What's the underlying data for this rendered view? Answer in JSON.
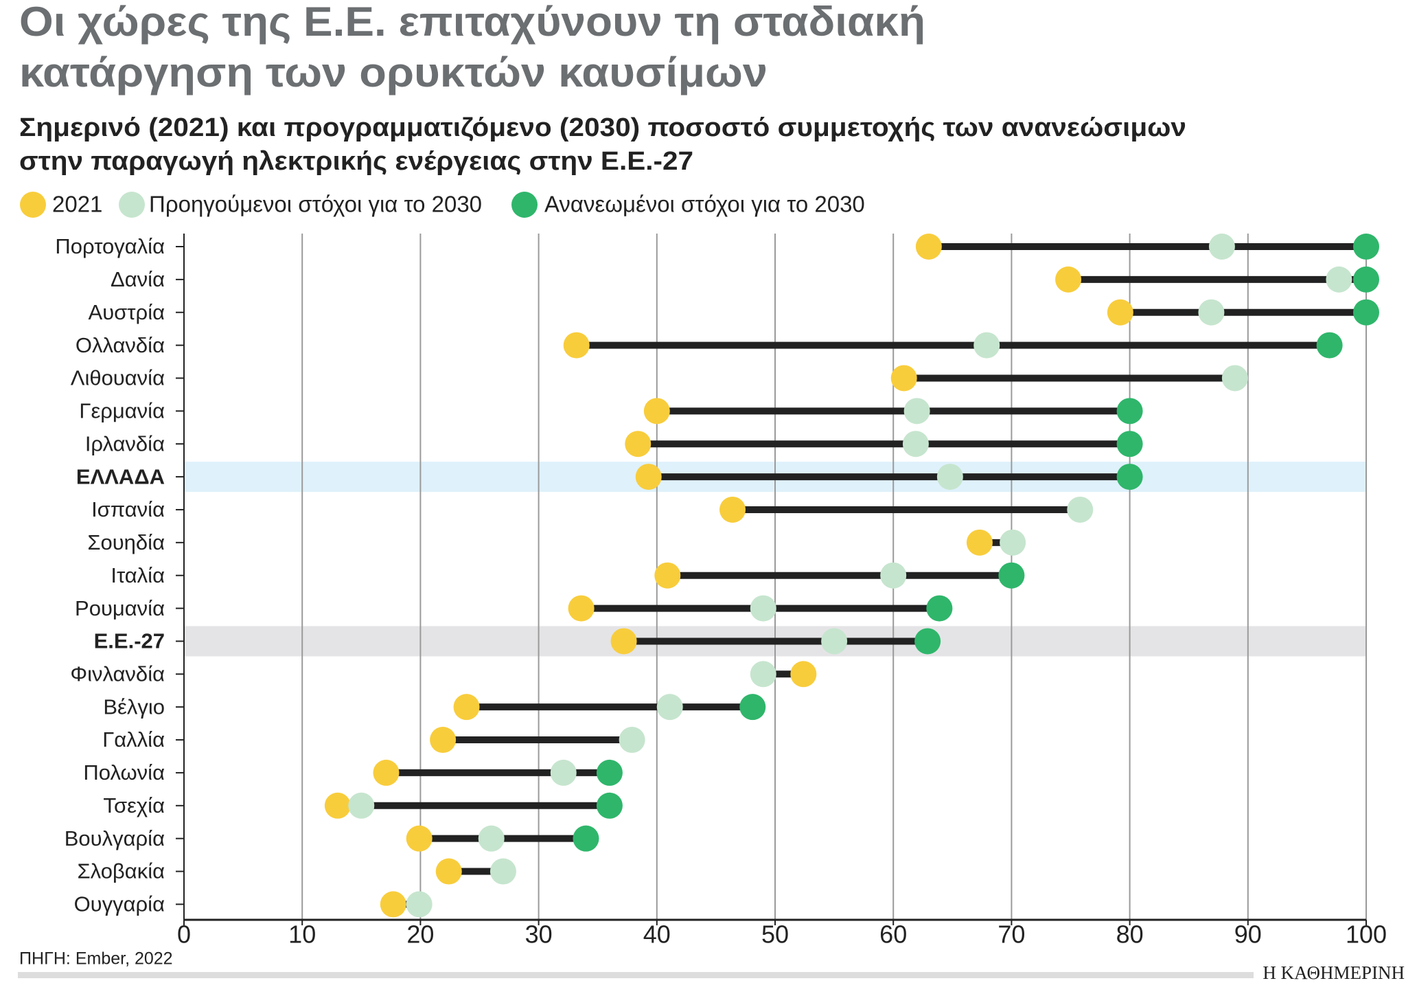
{
  "chart_data": {
    "type": "dumbbell",
    "title": [
      "Οι χώρες της Ε.Ε. επιταχύνουν τη σταδιακή",
      "κατάργηση των ορυκτών καυσίμων"
    ],
    "subtitle": [
      "Σημερινό (2021) και προγραμματιζόμενο (2030) ποσοστό συμμετοχής των ανανεώσιμων",
      "στην παραγωγή ηλεκτρικής ενέργειας στην Ε.Ε.-27"
    ],
    "categories": [
      "Πορτογαλία",
      "Δανία",
      "Αυστρία",
      "Ολλανδία",
      "Λιθουανία",
      "Γερμανία",
      "Ιρλανδία",
      "ΕΛΛΑΔΑ",
      "Ισπανία",
      "Σουηδία",
      "Ιταλία",
      "Ρουμανία",
      "Ε.Ε.-27",
      "Φινλανδία",
      "Βέλγιο",
      "Γαλλία",
      "Πολωνία",
      "Τσεχία",
      "Βουλγαρία",
      "Σλοβακία",
      "Ουγγαρία"
    ],
    "highlight_colors": [
      null,
      null,
      null,
      null,
      null,
      null,
      null,
      "#dff1fb",
      null,
      null,
      null,
      null,
      "#e4e4e6",
      null,
      null,
      null,
      null,
      null,
      null,
      null,
      null
    ],
    "series": [
      {
        "name": "2021",
        "color": "#f8cd3c",
        "values": [
          63.0,
          74.8,
          79.2,
          33.2,
          60.9,
          40.0,
          38.4,
          39.3,
          46.4,
          67.3,
          40.9,
          33.6,
          37.2,
          52.4,
          23.9,
          21.9,
          17.1,
          13.0,
          19.9,
          22.4,
          17.7
        ]
      },
      {
        "name": "Προηγούμενοι στόχοι για το 2030",
        "color": "#c6e5ce",
        "values": [
          87.8,
          97.7,
          86.9,
          67.9,
          88.9,
          62.0,
          61.9,
          64.8,
          75.8,
          70.1,
          60.0,
          49.0,
          55.0,
          49.0,
          41.1,
          37.9,
          32.1,
          15.0,
          26.0,
          27.0,
          19.9
        ]
      },
      {
        "name": "Ανανεωμένοι στόχοι για το 2030",
        "color": "#2fb66b",
        "values": [
          100,
          100,
          100,
          96.9,
          null,
          80,
          80,
          80,
          null,
          null,
          70,
          63.9,
          62.9,
          null,
          48.1,
          null,
          36.0,
          36.0,
          34.0,
          null,
          null
        ]
      }
    ],
    "connector_color": "#222222",
    "xlim": [
      0,
      100
    ],
    "xticks": [
      0,
      10,
      20,
      30,
      40,
      50,
      60,
      70,
      80,
      90,
      100
    ],
    "grid": true,
    "source": "ΠΗΓΗ: Ember, 2022",
    "publisher": "Η ΚΑΘΗΜΕΡΙΝΗ"
  }
}
